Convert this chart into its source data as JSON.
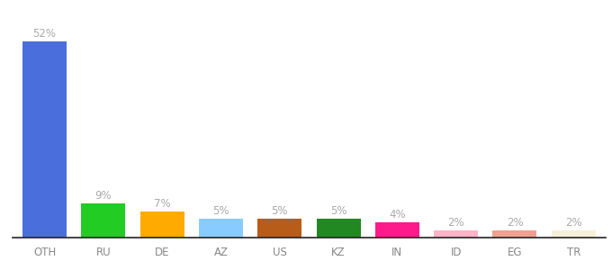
{
  "categories": [
    "OTH",
    "RU",
    "DE",
    "AZ",
    "US",
    "KZ",
    "IN",
    "ID",
    "EG",
    "TR"
  ],
  "values": [
    52,
    9,
    7,
    5,
    5,
    5,
    4,
    2,
    2,
    2
  ],
  "bar_colors": [
    "#4a6fdc",
    "#22cc22",
    "#ffaa00",
    "#88ccff",
    "#b85c1a",
    "#228822",
    "#ff1a8c",
    "#ffb3c6",
    "#f0a090",
    "#f5f0d8"
  ],
  "labels": [
    "52%",
    "9%",
    "7%",
    "5%",
    "5%",
    "5%",
    "4%",
    "2%",
    "2%",
    "2%"
  ],
  "background_color": "#ffffff",
  "label_color": "#aaaaaa",
  "label_fontsize": 8.5,
  "xlabel_fontsize": 8.5,
  "bar_width": 0.75,
  "ylim": [
    0,
    58
  ],
  "tick_color": "#888888",
  "spine_color": "#222222"
}
